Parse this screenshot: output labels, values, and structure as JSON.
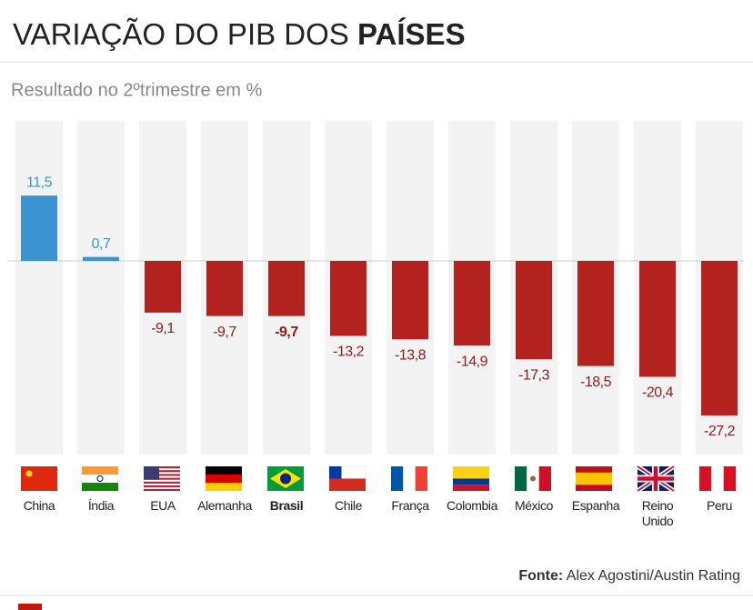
{
  "chart_data": {
    "type": "bar",
    "title": [
      "VARIAÇÃO DO PIB DOS",
      "PAÍSES"
    ],
    "subtitle": "Resultado no 2ºtrimestre em %",
    "categories": [
      "China",
      "Índia",
      "EUA",
      "Alemanha",
      "Brasil",
      "Chile",
      "França",
      "Colombia",
      "México",
      "Espanha",
      "Reino Unido",
      "Peru"
    ],
    "values": [
      11.5,
      0.7,
      -9.1,
      -9.7,
      -9.7,
      -13.2,
      -13.8,
      -14.9,
      -17.3,
      -18.5,
      -20.4,
      -27.2
    ],
    "value_labels": [
      "11,5",
      "0,7",
      "-9,1",
      "-9,7",
      "-9,7",
      "-13,2",
      "-13,8",
      "-14,9",
      "-17,3",
      "-18,5",
      "-20,4",
      "-27,2"
    ],
    "positive_color": "#3b93d1",
    "negative_color": "#b3221f",
    "highlight": "Brasil",
    "source": [
      "Fonte:",
      "Alex Agostini/Austin Rating"
    ]
  }
}
